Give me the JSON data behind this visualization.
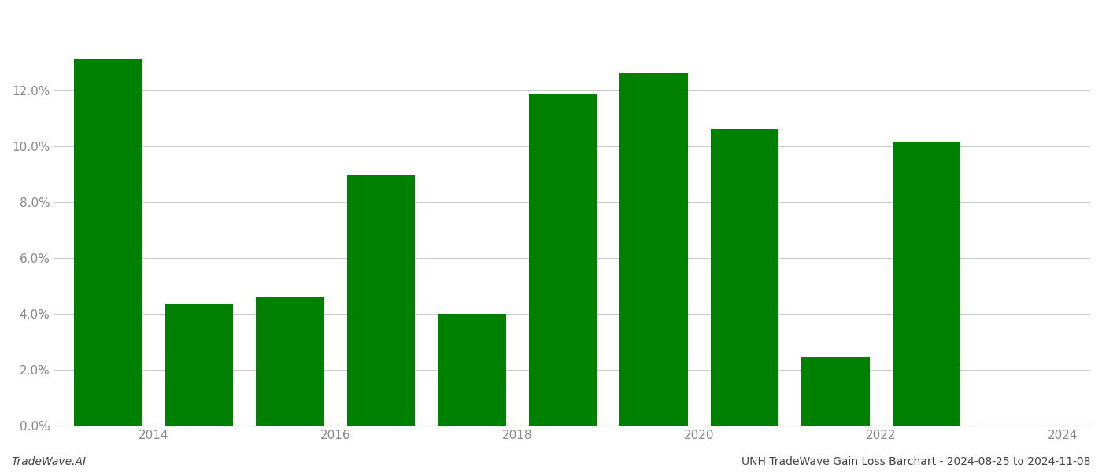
{
  "years": [
    2014,
    2015,
    2016,
    2017,
    2018,
    2019,
    2020,
    2021,
    2022,
    2023
  ],
  "values": [
    0.131,
    0.0435,
    0.046,
    0.0895,
    0.04,
    0.1185,
    0.126,
    0.106,
    0.0245,
    0.1015
  ],
  "bar_color": "#008000",
  "background_color": "#ffffff",
  "grid_color": "#cccccc",
  "axis_label_color": "#888888",
  "ylabel_ticks": [
    0.0,
    0.02,
    0.04,
    0.06,
    0.08,
    0.1,
    0.12
  ],
  "ylim": [
    0.0,
    0.148
  ],
  "xlabel_ticks": [
    2014.5,
    2016.5,
    2018.5,
    2020.5,
    2022.5,
    2024.5
  ],
  "xlabel_labels": [
    "2014",
    "2016",
    "2018",
    "2020",
    "2022",
    "2024"
  ],
  "xlim": [
    2013.4,
    2024.8
  ],
  "footer_left": "TradeWave.AI",
  "footer_right": "UNH TradeWave Gain Loss Barchart - 2024-08-25 to 2024-11-08",
  "bar_width": 0.75,
  "figsize": [
    14.0,
    6.0
  ],
  "dpi": 100
}
